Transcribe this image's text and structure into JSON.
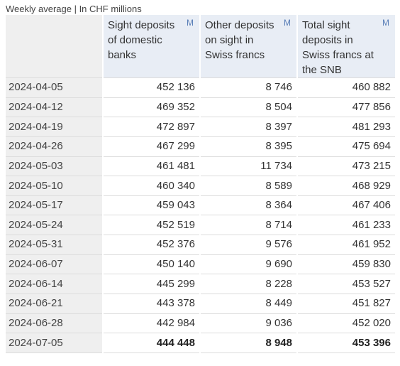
{
  "caption": "Weekly average | In CHF millions",
  "columns": [
    {
      "label": "",
      "marker": ""
    },
    {
      "label": "Sight deposits of domestic banks",
      "marker": "M"
    },
    {
      "label": "Other deposits on sight in Swiss francs",
      "marker": "M"
    },
    {
      "label": "Total sight deposits in Swiss francs at the SNB",
      "marker": "M"
    }
  ],
  "rows": [
    [
      "2024-04-05",
      "452 136",
      "8 746",
      "460 882"
    ],
    [
      "2024-04-12",
      "469 352",
      "8 504",
      "477 856"
    ],
    [
      "2024-04-19",
      "472 897",
      "8 397",
      "481 293"
    ],
    [
      "2024-04-26",
      "467 299",
      "8 395",
      "475 694"
    ],
    [
      "2024-05-03",
      "461 481",
      "11 734",
      "473 215"
    ],
    [
      "2024-05-10",
      "460 340",
      "8 589",
      "468 929"
    ],
    [
      "2024-05-17",
      "459 043",
      "8 364",
      "467 406"
    ],
    [
      "2024-05-24",
      "452 519",
      "8 714",
      "461 233"
    ],
    [
      "2024-05-31",
      "452 376",
      "9 576",
      "461 952"
    ],
    [
      "2024-06-07",
      "450 140",
      "9 690",
      "459 830"
    ],
    [
      "2024-06-14",
      "445 299",
      "8 228",
      "453 527"
    ],
    [
      "2024-06-21",
      "443 378",
      "8 449",
      "451 827"
    ],
    [
      "2024-06-28",
      "442 984",
      "9 036",
      "452 020"
    ],
    [
      "2024-07-05",
      "444 448",
      "8 948",
      "453 396"
    ]
  ]
}
